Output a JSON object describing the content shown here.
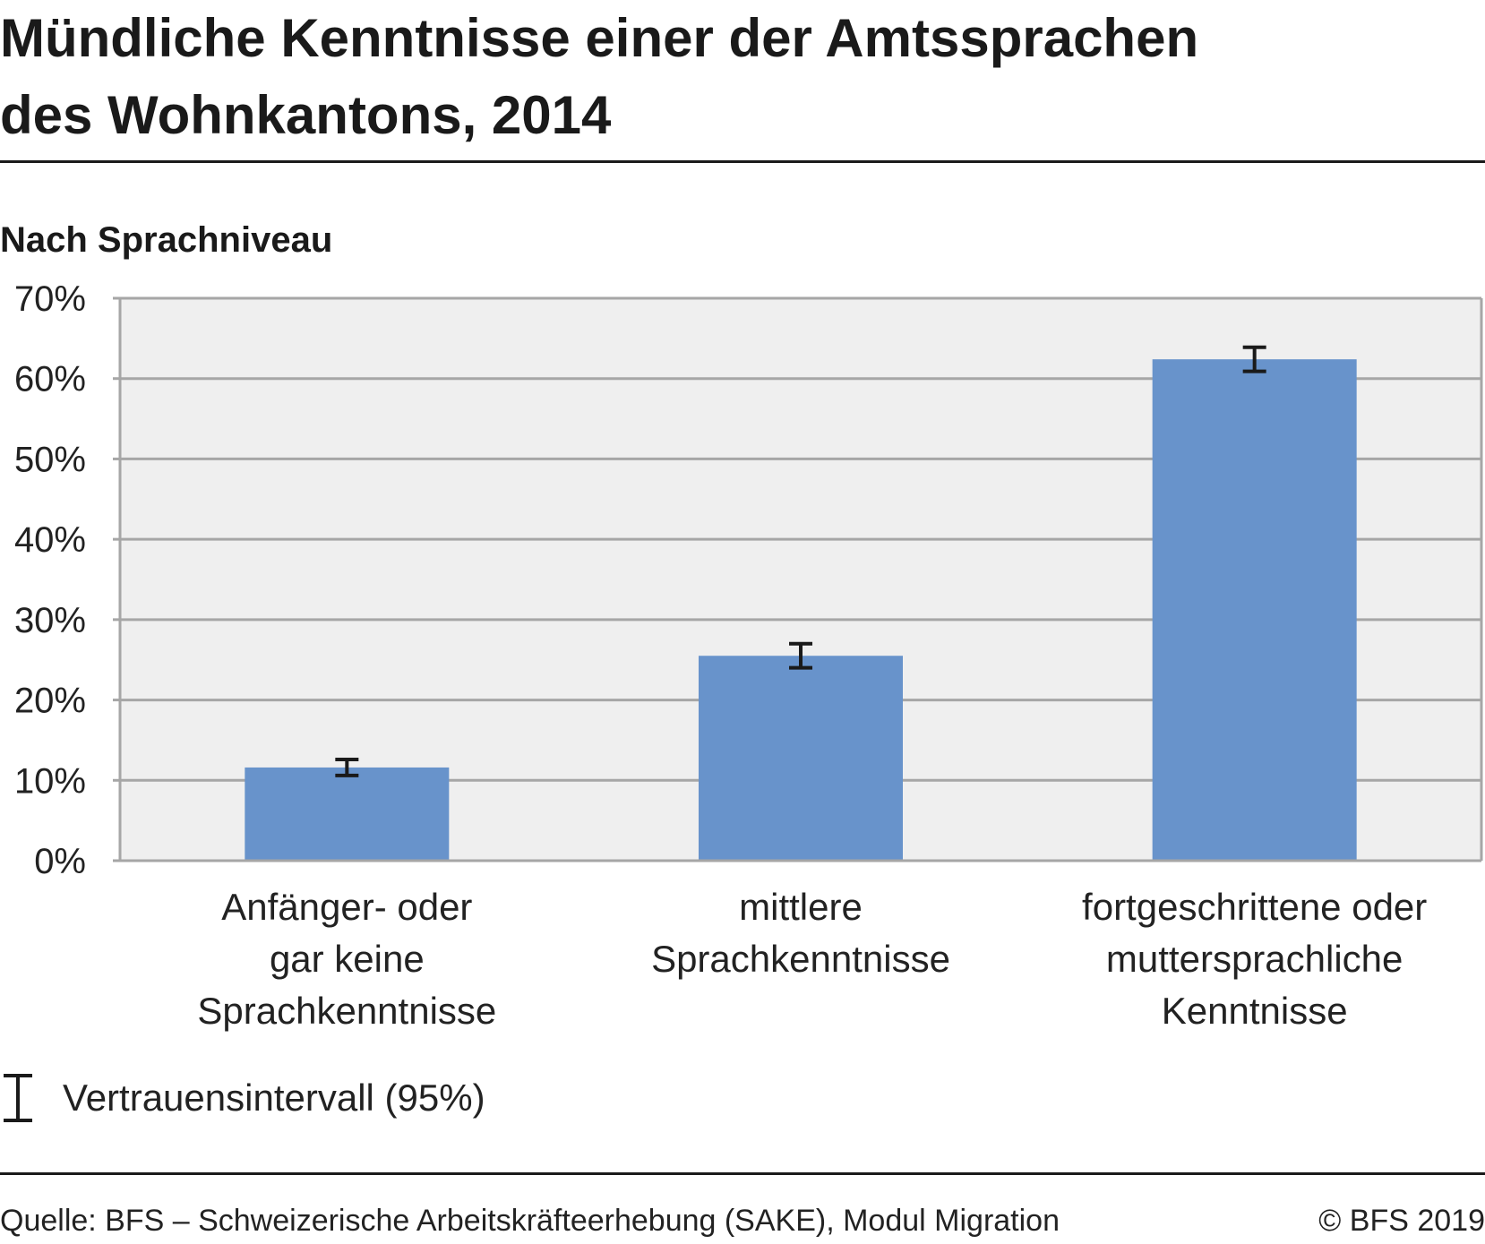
{
  "header": {
    "title_line1": "Mündliche Kenntnisse einer der Amtssprachen",
    "title_line2": "des Wohnkantons, 2014",
    "subtitle": "Nach Sprachniveau"
  },
  "chart_data": {
    "type": "bar",
    "title": "Mündliche Kenntnisse einer der Amtssprachen des Wohnkantons, 2014",
    "subtitle": "Nach Sprachniveau",
    "categories": [
      [
        "Anfänger- oder",
        "gar keine",
        "Sprachkenntnisse"
      ],
      [
        "mittlere",
        "Sprachkenntnisse"
      ],
      [
        "fortgeschrittene oder",
        "muttersprachliche",
        "Kenntnisse"
      ]
    ],
    "values": [
      11.6,
      25.5,
      62.4
    ],
    "error_low": [
      10.6,
      24.0,
      60.9
    ],
    "error_high": [
      12.6,
      27.0,
      63.9
    ],
    "ylim": [
      0,
      70
    ],
    "yticks": [
      0,
      10,
      20,
      30,
      40,
      50,
      60,
      70
    ],
    "ytick_labels": [
      "0%",
      "10%",
      "20%",
      "30%",
      "40%",
      "50%",
      "60%",
      "70%"
    ],
    "grid": true,
    "colors": {
      "bar": "#6893CB",
      "plot_background": "#EFEFEF",
      "gridline": "#A6A6A6",
      "error_bar": "#1A1A1A"
    },
    "legend": {
      "label": "Vertrauensintervall (95%)",
      "placement": "bottom-left",
      "icon": "error-bar-icon"
    }
  },
  "footer": {
    "source": "Quelle: BFS – Schweizerische Arbeitskräfteerhebung (SAKE), Modul Migration",
    "copyright": "© BFS 2019"
  }
}
